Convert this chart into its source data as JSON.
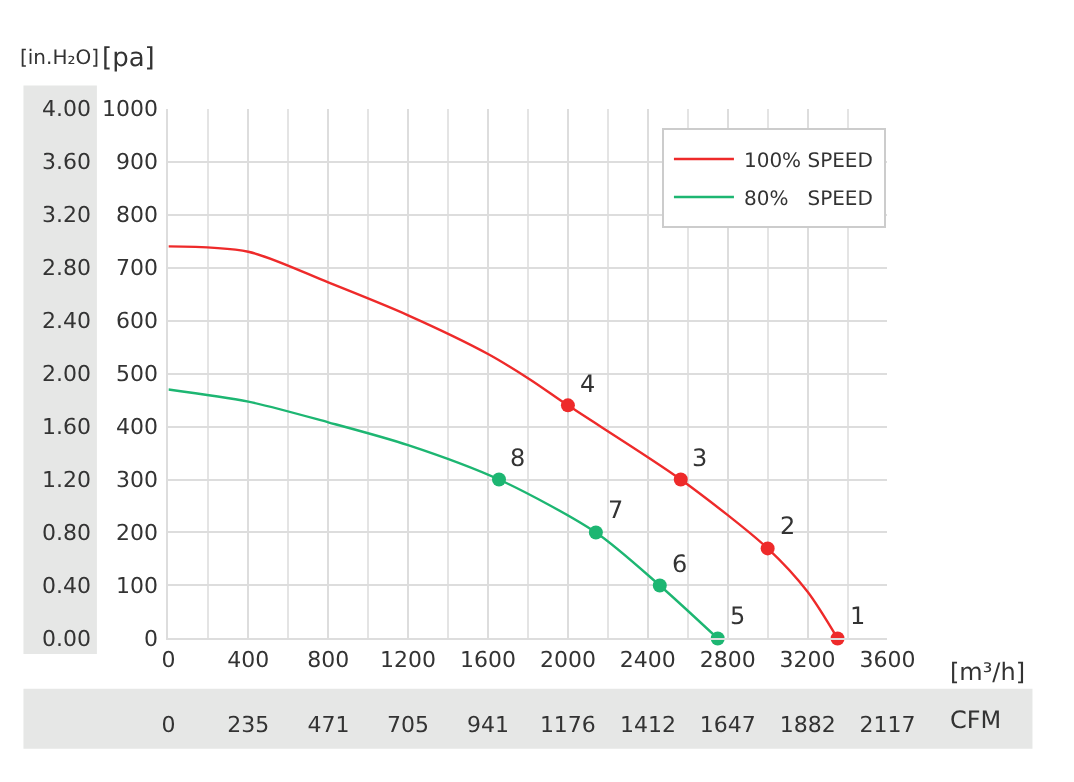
{
  "chart_data": {
    "type": "line",
    "series": [
      {
        "name": "100% SPEED",
        "color": "#ee2a2a",
        "x": [
          0,
          400,
          800,
          1200,
          1600,
          1810,
          2000,
          2565,
          3000,
          3200,
          3350
        ],
        "values": [
          740,
          730,
          672,
          610,
          537,
          489,
          440,
          300,
          170,
          88,
          0
        ]
      },
      {
        "name": "80%   SPEED",
        "color": "#1db672",
        "x": [
          0,
          400,
          800,
          1200,
          1655,
          2140,
          2460,
          2750
        ],
        "values": [
          470,
          447,
          408,
          365,
          300,
          200,
          100,
          0
        ]
      },
      {
        "type": "scatter",
        "marker": "circle",
        "color": "#ee2a2a",
        "x": [
          3350,
          3000,
          2565,
          2000
        ],
        "values": [
          0,
          170,
          300,
          440
        ]
      },
      {
        "type": "scatter",
        "marker": "circle",
        "color": "#1db672",
        "x": [
          2750,
          2460,
          2140,
          1655
        ],
        "values": [
          0,
          100,
          200,
          300
        ]
      }
    ],
    "marker": "none",
    "xlabel": "[m³/h]",
    "ylabel": "[pa]",
    "y2label": "[in.H₂O]",
    "x2label": "CFM",
    "xlim": [
      0,
      3600
    ],
    "xticks": [
      0,
      400,
      800,
      1200,
      1600,
      2000,
      2400,
      2800,
      3200,
      3600
    ],
    "ylim": [
      0,
      1000
    ],
    "yticks": [
      0,
      100,
      200,
      300,
      400,
      500,
      600,
      700,
      800,
      900,
      1000
    ],
    "y2lim": [
      0,
      4
    ],
    "y2ticks": [
      {
        "value": 0,
        "label": "0.00"
      },
      {
        "value": 0.4,
        "label": "0.40"
      },
      {
        "value": 0.8,
        "label": "0.80"
      },
      {
        "value": 1.2,
        "label": "1.20"
      },
      {
        "value": 1.6,
        "label": "1.60"
      },
      {
        "value": 2,
        "label": "2.00"
      },
      {
        "value": 2.4,
        "label": "2.40"
      },
      {
        "value": 2.8,
        "label": "2.80"
      },
      {
        "value": 3.2,
        "label": "3.20"
      },
      {
        "value": 3.6,
        "label": "3.60"
      },
      {
        "value": 4,
        "label": "4.00"
      }
    ],
    "x2lim": [
      0,
      2117
    ],
    "x2ticks": [
      0,
      235,
      471,
      705,
      941,
      1176,
      1412,
      1647,
      1882,
      2117
    ],
    "annotations": [
      {
        "text": "1",
        "x": 3350,
        "y": 0
      },
      {
        "text": "2",
        "x": 3000,
        "y": 170
      },
      {
        "text": "3",
        "x": 2565,
        "y": 300
      },
      {
        "text": "4",
        "x": 2000,
        "y": 440
      },
      {
        "text": "5",
        "x": 2750,
        "y": 0
      },
      {
        "text": "6",
        "x": 2460,
        "y": 100
      },
      {
        "text": "7",
        "x": 2140,
        "y": 200
      },
      {
        "text": "8",
        "x": 1655,
        "y": 300
      }
    ],
    "grid": true,
    "legend": "top right"
  }
}
